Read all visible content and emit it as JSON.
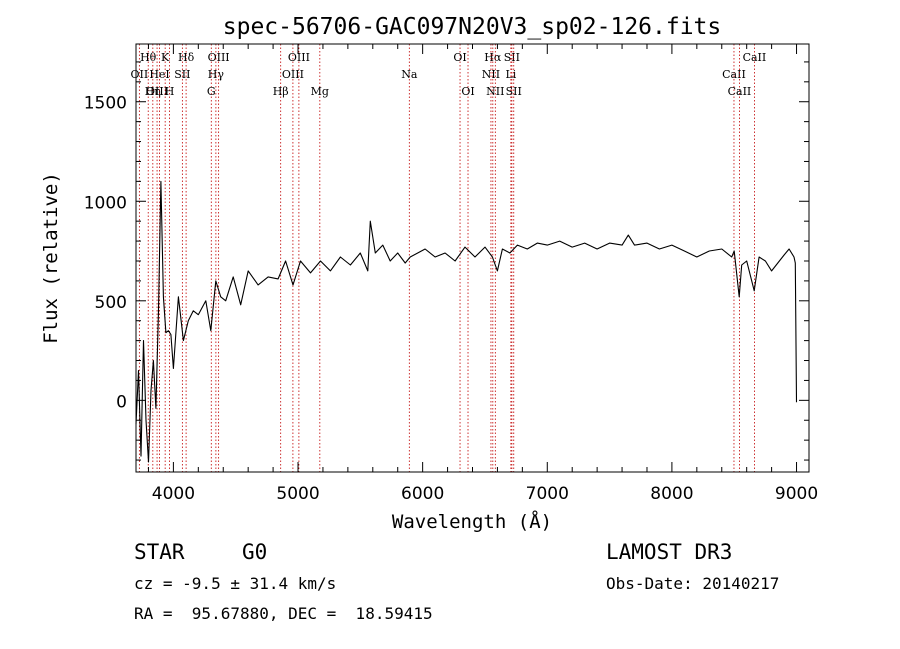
{
  "chart_data": {
    "type": "line",
    "title": "spec-56706-GAC097N20V3_sp02-126.fits",
    "xlabel": "Wavelength (Å)",
    "ylabel": "Flux (relative)",
    "xlim": [
      3700,
      9100
    ],
    "ylim": [
      -360,
      1790
    ],
    "xticks": [
      4000,
      5000,
      6000,
      7000,
      8000,
      9000
    ],
    "xtick_labels": [
      "4000",
      "5000",
      "6000",
      "7000",
      "8000",
      "9000"
    ],
    "yticks": [
      0,
      500,
      1000,
      1500
    ],
    "ytick_labels": [
      "0",
      "500",
      "1000",
      "1500"
    ],
    "line_color": "#000000",
    "marker_color": "#c00000",
    "series": [
      {
        "name": "flux",
        "x": [
          3700,
          3720,
          3740,
          3760,
          3780,
          3800,
          3820,
          3840,
          3860,
          3880,
          3900,
          3920,
          3940,
          3960,
          3980,
          4000,
          4040,
          4080,
          4120,
          4160,
          4200,
          4260,
          4300,
          4340,
          4380,
          4420,
          4480,
          4540,
          4600,
          4680,
          4760,
          4840,
          4900,
          4960,
          5020,
          5100,
          5180,
          5260,
          5340,
          5420,
          5500,
          5560,
          5580,
          5620,
          5680,
          5740,
          5800,
          5860,
          5900,
          5960,
          6020,
          6100,
          6180,
          6260,
          6340,
          6420,
          6500,
          6560,
          6600,
          6640,
          6700,
          6760,
          6840,
          6920,
          7000,
          7100,
          7200,
          7300,
          7400,
          7500,
          7600,
          7650,
          7700,
          7800,
          7900,
          8000,
          8100,
          8200,
          8300,
          8400,
          8480,
          8500,
          8540,
          8560,
          8600,
          8660,
          8700,
          8750,
          8800,
          8850,
          8900,
          8940,
          8980,
          8990,
          9000
        ],
        "y": [
          -120,
          150,
          -280,
          300,
          -100,
          -310,
          50,
          200,
          -40,
          430,
          1100,
          520,
          340,
          350,
          330,
          160,
          520,
          300,
          400,
          450,
          430,
          500,
          350,
          600,
          520,
          500,
          620,
          480,
          650,
          580,
          620,
          610,
          700,
          580,
          700,
          640,
          700,
          650,
          720,
          680,
          740,
          650,
          900,
          740,
          780,
          700,
          740,
          690,
          720,
          740,
          760,
          720,
          740,
          700,
          770,
          720,
          770,
          720,
          650,
          760,
          740,
          780,
          760,
          790,
          780,
          800,
          770,
          790,
          760,
          790,
          780,
          830,
          780,
          790,
          760,
          780,
          750,
          720,
          750,
          760,
          720,
          750,
          520,
          680,
          700,
          550,
          720,
          700,
          650,
          690,
          730,
          760,
          720,
          690,
          -10
        ]
      }
    ],
    "line_markers": [
      {
        "label": "Hθ",
        "x": 3798,
        "row": 1
      },
      {
        "label": "OII",
        "x": 3727,
        "row": 2
      },
      {
        "label": "OIII",
        "x": 3869,
        "row": 3
      },
      {
        "label": "Hη",
        "x": 3835,
        "row": 3
      },
      {
        "label": "K",
        "x": 3934,
        "row": 1
      },
      {
        "label": "HeI",
        "x": 3889,
        "row": 2
      },
      {
        "label": "H",
        "x": 3969,
        "row": 3
      },
      {
        "label": "Hδ",
        "x": 4102,
        "row": 1
      },
      {
        "label": "SII",
        "x": 4072,
        "row": 2
      },
      {
        "label": "OIII",
        "x": 4363,
        "row": 1
      },
      {
        "label": "Hγ",
        "x": 4341,
        "row": 2
      },
      {
        "label": "G",
        "x": 4304,
        "row": 3
      },
      {
        "label": "OIII",
        "x": 5007,
        "row": 1
      },
      {
        "label": "OIII",
        "x": 4959,
        "row": 2
      },
      {
        "label": "Hβ",
        "x": 4861,
        "row": 3
      },
      {
        "label": "Mg",
        "x": 5175,
        "row": 3
      },
      {
        "label": "Na",
        "x": 5893,
        "row": 2
      },
      {
        "label": "OI",
        "x": 6300,
        "row": 1
      },
      {
        "label": "OI",
        "x": 6364,
        "row": 3
      },
      {
        "label": "Hα",
        "x": 6563,
        "row": 1
      },
      {
        "label": "SII",
        "x": 6716,
        "row": 1
      },
      {
        "label": "NII",
        "x": 6548,
        "row": 2
      },
      {
        "label": "Li",
        "x": 6708,
        "row": 2
      },
      {
        "label": "NII",
        "x": 6583,
        "row": 3
      },
      {
        "label": "SII",
        "x": 6731,
        "row": 3
      },
      {
        "label": "CaII",
        "x": 8662,
        "row": 1
      },
      {
        "label": "CaII",
        "x": 8498,
        "row": 2
      },
      {
        "label": "CaII",
        "x": 8542,
        "row": 3
      }
    ]
  },
  "info": {
    "object_class": "STAR",
    "subclass": "G0",
    "survey": "LAMOST DR3",
    "velocity": "cz = -9.5 ± 31.4 km/s",
    "obs_date": "Obs-Date: 20140217",
    "coordinates": "RA =  95.67880, DEC =  18.59415"
  }
}
